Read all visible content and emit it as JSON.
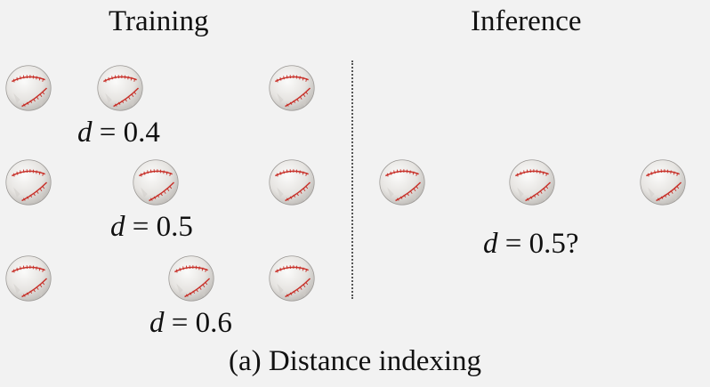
{
  "headings": {
    "training": "Training",
    "inference": "Inference"
  },
  "labels": {
    "row1": {
      "var": "d",
      "eq": " = 0.4"
    },
    "row2": {
      "var": "d",
      "eq": " = 0.5"
    },
    "row3": {
      "var": "d",
      "eq": " = 0.6"
    },
    "inference": {
      "var": "d",
      "eq": " = 0.5?"
    }
  },
  "caption": "(a) Distance indexing",
  "colors": {
    "background": "#f2f2f2",
    "ball": "#e7e5e2",
    "stitch": "#c8322b",
    "divider": "#555555"
  },
  "icons": {
    "ball": "baseball-icon"
  }
}
